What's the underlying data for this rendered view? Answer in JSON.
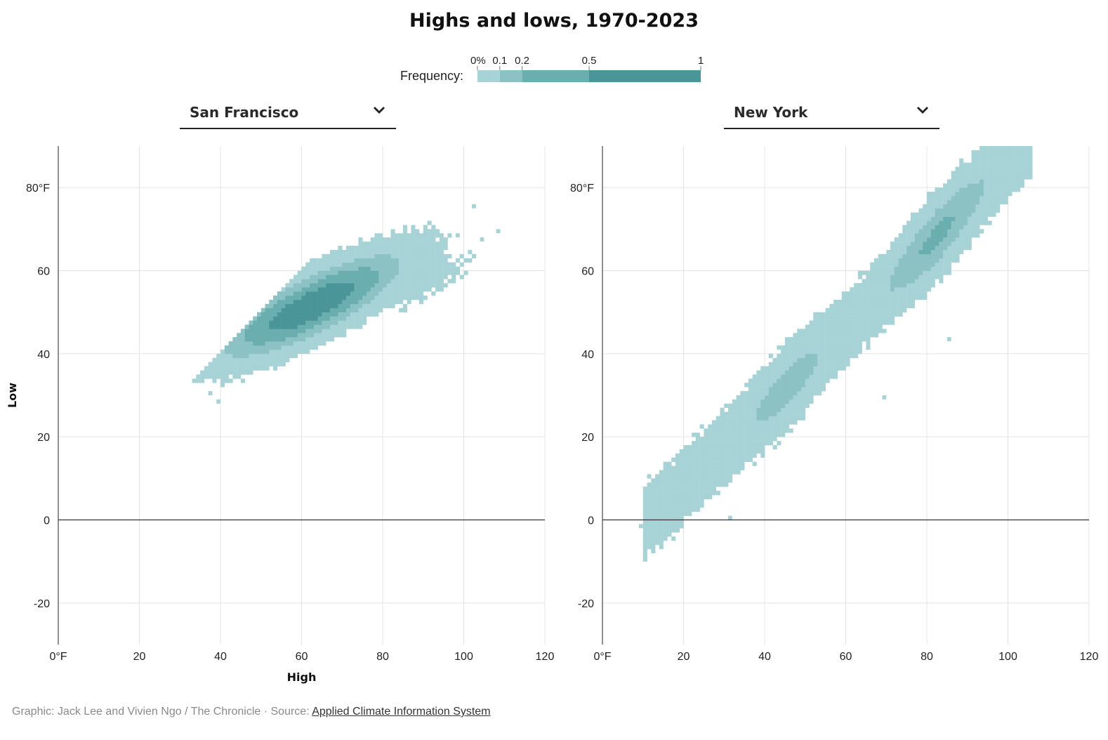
{
  "header": {
    "title": "Highs and lows, 1970-2023"
  },
  "legend": {
    "label": "Frequency:",
    "stops": [
      {
        "value": 0,
        "tick": "0%",
        "color": "#a8d3d6"
      },
      {
        "value": 0.1,
        "tick": "0.1",
        "color": "#8cc2c4"
      },
      {
        "value": 0.2,
        "tick": "0.2",
        "color": "#6aaeb0"
      },
      {
        "value": 0.5,
        "tick": "0.5",
        "color": "#4a9597"
      },
      {
        "value": 1,
        "tick": "1"
      }
    ]
  },
  "dropdowns": [
    {
      "selected": "San Francisco"
    },
    {
      "selected": "New York"
    }
  ],
  "footer": {
    "credit": "Graphic: Jack Lee and Vivien Ngo / The Chronicle · Source: ",
    "source_link": "Applied Climate Information System"
  },
  "chart_data": [
    {
      "type": "heatmap",
      "city": "San Francisco",
      "xlabel": "High",
      "ylabel": "Low",
      "xlim": [
        0,
        120
      ],
      "ylim": [
        -30,
        90
      ],
      "x_ticks": [
        "0°F",
        "20",
        "40",
        "60",
        "80",
        "100",
        "120"
      ],
      "y_ticks": [
        "80°F",
        "60",
        "40",
        "20",
        "0",
        "-20"
      ],
      "grid": true,
      "density": {
        "center": [
          62,
          51
        ],
        "correlation_slope": 0.4,
        "core_high_range": [
          38,
          108
        ],
        "core_low_range": [
          27,
          75
        ]
      },
      "outliers": [
        [
          37,
          30
        ],
        [
          39,
          28
        ],
        [
          102,
          75
        ],
        [
          108,
          69
        ],
        [
          98,
          68
        ],
        [
          104,
          67
        ]
      ]
    },
    {
      "type": "heatmap",
      "city": "New York",
      "xlabel": "",
      "ylabel": "",
      "xlim": [
        0,
        120
      ],
      "ylim": [
        -30,
        90
      ],
      "x_ticks": [
        "0°F",
        "20",
        "40",
        "60",
        "80",
        "100",
        "120"
      ],
      "y_ticks": [
        "80°F",
        "60",
        "40",
        "20",
        "0",
        "-20"
      ],
      "grid": true,
      "density": {
        "center": [
          62,
          45
        ],
        "correlation_slope": 0.88,
        "core_high_range": [
          9,
          105
        ],
        "core_low_range": [
          -2,
          84
        ]
      },
      "outliers": [
        [
          9,
          -2
        ],
        [
          12,
          -2
        ],
        [
          31,
          0
        ],
        [
          104,
          84
        ],
        [
          102,
          83
        ],
        [
          101,
          81
        ],
        [
          85,
          43
        ],
        [
          69,
          29
        ]
      ]
    }
  ]
}
